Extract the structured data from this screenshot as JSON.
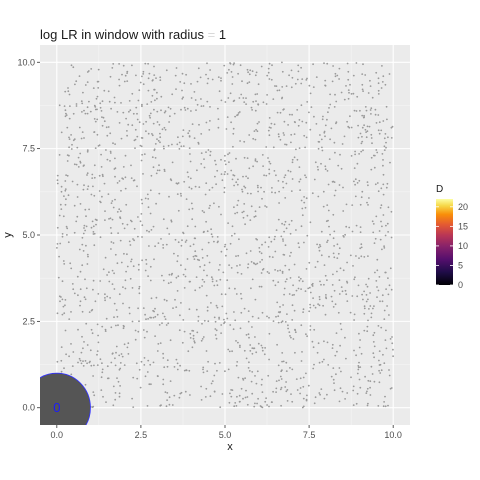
{
  "chart_data": {
    "type": "scatter",
    "title": "log LR in window with radius = 1",
    "title_prefix": "log LR in window with radius",
    "title_suffix": "1",
    "xlabel": "x",
    "ylabel": "y",
    "xlim": [
      -0.5,
      10.5
    ],
    "ylim": [
      -0.5,
      10.5
    ],
    "x_ticks": [
      0,
      2.5,
      5,
      7.5,
      10
    ],
    "x_tick_labels": [
      "0.0",
      "2.5",
      "5.0",
      "7.5",
      "10.0"
    ],
    "y_ticks": [
      0,
      2.5,
      5,
      7.5,
      10
    ],
    "y_tick_labels": [
      "0.0",
      "2.5",
      "5.0",
      "7.5",
      "10.0"
    ],
    "grid": true,
    "point_color": "#9a9a9a",
    "point_count": 2000,
    "point_domain": [
      0,
      10
    ],
    "window": {
      "x": 0,
      "y": 0,
      "radius": 1,
      "fill": "#555555",
      "stroke": "#3333ff"
    },
    "window_value_label": "0",
    "window_value_color": "#1a1aff",
    "legend": {
      "title": "D",
      "position": "right",
      "colormap": "inferno",
      "range": [
        0,
        22
      ],
      "ticks": [
        0,
        5,
        10,
        15,
        20
      ],
      "tick_labels": [
        "0",
        "5",
        "10",
        "15",
        "20"
      ]
    }
  }
}
